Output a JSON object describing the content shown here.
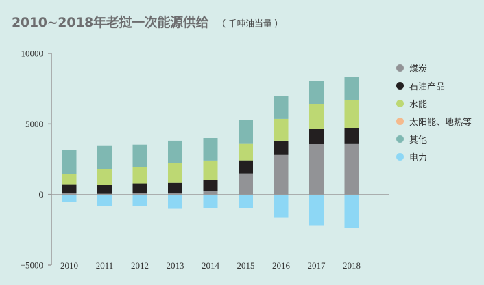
{
  "chart_data": {
    "type": "bar",
    "stacked": true,
    "title": "2010~2018年老挝一次能源供给",
    "subtitle": "（ 千吨油当量 ）",
    "xlabel": "",
    "ylabel": "",
    "ylim": [
      -5000,
      10000
    ],
    "yticks": [
      {
        "value": 10000,
        "label": "10000"
      },
      {
        "value": 5000,
        "label": "5000"
      },
      {
        "value": 0,
        "label": "0"
      },
      {
        "value": -5000,
        "label": "−5000"
      }
    ],
    "categories": [
      "2010",
      "2011",
      "2012",
      "2013",
      "2014",
      "2015",
      "2016",
      "2017",
      "2018"
    ],
    "legend_position": "right",
    "series": [
      {
        "name": "煤炭",
        "color": "#929396",
        "values": [
          100,
          50,
          100,
          100,
          240,
          1500,
          2800,
          3570,
          3620
        ]
      },
      {
        "name": "石油产品",
        "color": "#231f20",
        "values": [
          630,
          630,
          680,
          720,
          770,
          920,
          1010,
          1060,
          1060
        ]
      },
      {
        "name": "水能",
        "color": "#bdd873",
        "values": [
          720,
          1110,
          1160,
          1400,
          1400,
          1210,
          1550,
          1790,
          2030
        ]
      },
      {
        "name": "太阳能、地热等",
        "color": "#f5b98c",
        "values": [
          0,
          0,
          0,
          0,
          0,
          0,
          0,
          0,
          0
        ]
      },
      {
        "name": "其他",
        "color": "#7fb8b2",
        "values": [
          1690,
          1690,
          1590,
          1590,
          1590,
          1640,
          1640,
          1640,
          1640
        ]
      },
      {
        "name": "电力",
        "color": "#8dd7f5",
        "values": [
          -530,
          -820,
          -820,
          -1010,
          -970,
          -970,
          -1640,
          -2170,
          -2370
        ]
      }
    ]
  }
}
